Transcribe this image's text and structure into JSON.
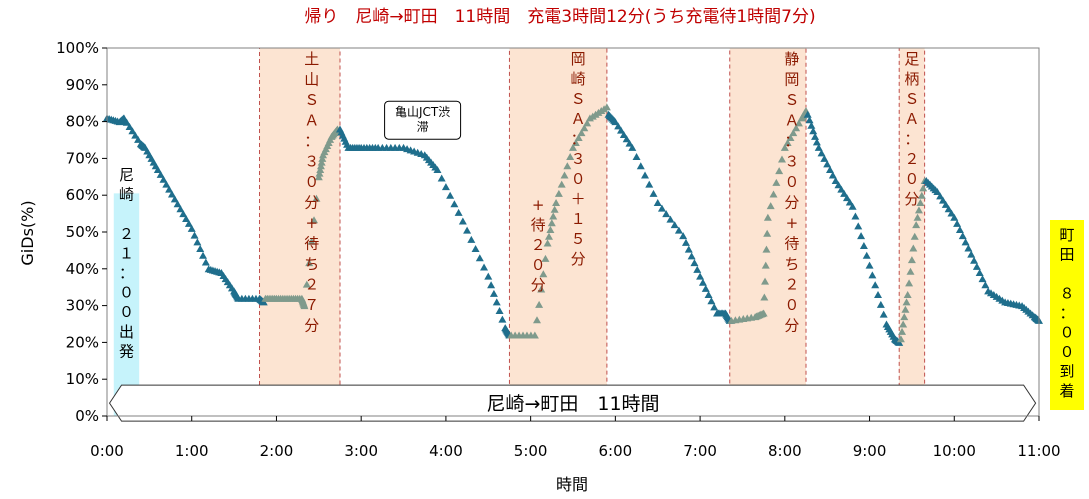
{
  "chart_data": {
    "type": "scatter",
    "title": "帰り　尼崎→町田　11時間　充電3時間12分(うち充電待1時間7分)",
    "xlabel": "時間",
    "ylabel": "GiDs(%)",
    "xlim": [
      0,
      11
    ],
    "ylim": [
      0,
      100
    ],
    "x_ticks": [
      "0:00",
      "1:00",
      "2:00",
      "3:00",
      "4:00",
      "5:00",
      "6:00",
      "7:00",
      "8:00",
      "9:00",
      "10:00",
      "11:00"
    ],
    "y_ticks": [
      "0%",
      "10%",
      "20%",
      "30%",
      "40%",
      "50%",
      "60%",
      "70%",
      "80%",
      "90%",
      "100%"
    ],
    "grid": false,
    "colors": {
      "drive": "#1f6e8c",
      "charge": "#7f9a8c",
      "band_fill": "#fce4d2",
      "band_stroke": "#c0504d",
      "title": "#c00000",
      "start_box": "#c6f3fb",
      "end_box": "#ffff00"
    },
    "series": [
      {
        "role": "drive",
        "x": [
          0,
          0.15,
          0.2,
          0.4,
          0.45,
          0.6,
          0.8,
          1.0,
          1.2,
          1.35,
          1.5,
          1.55,
          1.8,
          1.85
        ],
        "y": [
          81,
          80,
          81,
          74,
          73,
          67,
          59,
          51,
          40,
          39,
          34,
          32,
          32,
          31
        ]
      },
      {
        "role": "charge",
        "x": [
          1.87,
          2.0,
          2.15,
          2.3,
          2.33,
          2.5,
          2.55,
          2.65,
          2.72
        ],
        "y": [
          32,
          32,
          32,
          32,
          30,
          65,
          71,
          76,
          78
        ]
      },
      {
        "role": "drive",
        "x": [
          2.75,
          2.85,
          3.0,
          3.2,
          3.5,
          3.75,
          3.9,
          4.2,
          4.5,
          4.7,
          4.75
        ],
        "y": [
          78,
          73,
          73,
          73,
          73,
          71,
          67,
          53,
          38,
          24,
          22
        ]
      },
      {
        "role": "charge",
        "x": [
          4.77,
          5.05,
          5.2,
          5.3,
          5.5,
          5.7,
          5.9
        ],
        "y": [
          22,
          22,
          47,
          58,
          73,
          81,
          84
        ]
      },
      {
        "role": "drive",
        "x": [
          5.92,
          6.0,
          6.2,
          6.5,
          6.8,
          7.0,
          7.2,
          7.3,
          7.35
        ],
        "y": [
          82,
          80,
          73,
          58,
          49,
          38,
          28,
          28,
          26
        ]
      },
      {
        "role": "charge",
        "x": [
          7.37,
          7.65,
          7.75,
          7.8,
          8.0,
          8.2,
          8.25
        ],
        "y": [
          26,
          27,
          28,
          54,
          73,
          81,
          83
        ]
      },
      {
        "role": "drive",
        "x": [
          8.27,
          8.4,
          8.6,
          8.8,
          9.0,
          9.2,
          9.3,
          9.35
        ],
        "y": [
          82,
          73,
          64,
          57,
          41,
          25,
          21,
          20
        ]
      },
      {
        "role": "charge",
        "x": [
          9.37,
          9.45,
          9.55,
          9.65
        ],
        "y": [
          21,
          33,
          52,
          64
        ]
      },
      {
        "role": "drive",
        "x": [
          9.67,
          9.8,
          10.0,
          10.2,
          10.4,
          10.6,
          10.8,
          10.95,
          11.0
        ],
        "y": [
          64,
          61,
          54,
          44,
          34,
          31,
          30,
          27,
          26
        ]
      }
    ],
    "bands": [
      {
        "x0": 1.8,
        "x1": 2.75,
        "label": "土山ＳＡ：３０分+待ち２７分"
      },
      {
        "x0": 4.75,
        "x1": 5.9,
        "label": "岡崎ＳＡ：３０＋１５分",
        "label2": "+待２０分"
      },
      {
        "x0": 7.35,
        "x1": 8.25,
        "label": "静岡ＳＡ：３０分+待ち２０分"
      },
      {
        "x0": 9.35,
        "x1": 9.65,
        "label": "足柄ＳＡ：２０分"
      }
    ],
    "annotations": [
      {
        "text": "亀山JCT渋滞",
        "line1": "亀山JCT渋",
        "line2": "滞",
        "x": 3.3,
        "y": 85
      }
    ],
    "start_label": "尼崎　２１：００出発",
    "end_label": "町田　８：００到着",
    "banner": "尼崎→町田　11時間"
  }
}
